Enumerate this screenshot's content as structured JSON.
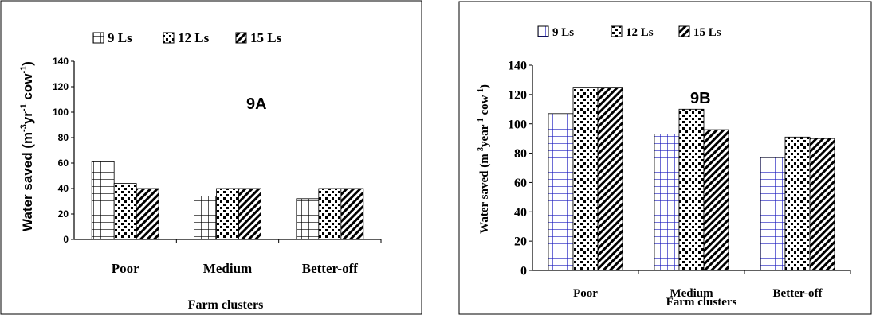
{
  "chart_data": [
    {
      "id": "9A",
      "type": "bar",
      "panel_label": "9A",
      "categories": [
        "Poor",
        "Medium",
        "Better-off"
      ],
      "series": [
        {
          "name": "9 Ls",
          "values": [
            61,
            34,
            32
          ]
        },
        {
          "name": "12 Ls",
          "values": [
            44,
            40,
            40
          ]
        },
        {
          "name": "15 Ls",
          "values": [
            40,
            40,
            40
          ]
        }
      ],
      "xlabel": "Farm clusters",
      "ylabel": "Water saved (m-3yr-1 cow-1)",
      "ylim": [
        0,
        140
      ],
      "yticks": [
        "0",
        "20",
        "40",
        "60",
        "80",
        "100",
        "120",
        "140"
      ],
      "legend": "top",
      "grid": false,
      "pattern_color": "#000000"
    },
    {
      "id": "9B",
      "type": "bar",
      "panel_label": "9B",
      "categories": [
        "Poor",
        "Medium",
        "Better-off"
      ],
      "series": [
        {
          "name": "9 Ls",
          "values": [
            107,
            93,
            77
          ]
        },
        {
          "name": "12 Ls",
          "values": [
            125,
            110,
            91
          ]
        },
        {
          "name": "15 Ls",
          "values": [
            125,
            96,
            90
          ]
        }
      ],
      "xlabel": "Farm clusters",
      "ylabel": "Water saved (m-3year-1 cow-1)",
      "ylim": [
        0,
        140
      ],
      "yticks": [
        "0",
        "20",
        "40",
        "60",
        "80",
        "100",
        "120",
        "140"
      ],
      "legend": "top",
      "grid": false,
      "pattern_color": "#1f1fbf"
    }
  ]
}
